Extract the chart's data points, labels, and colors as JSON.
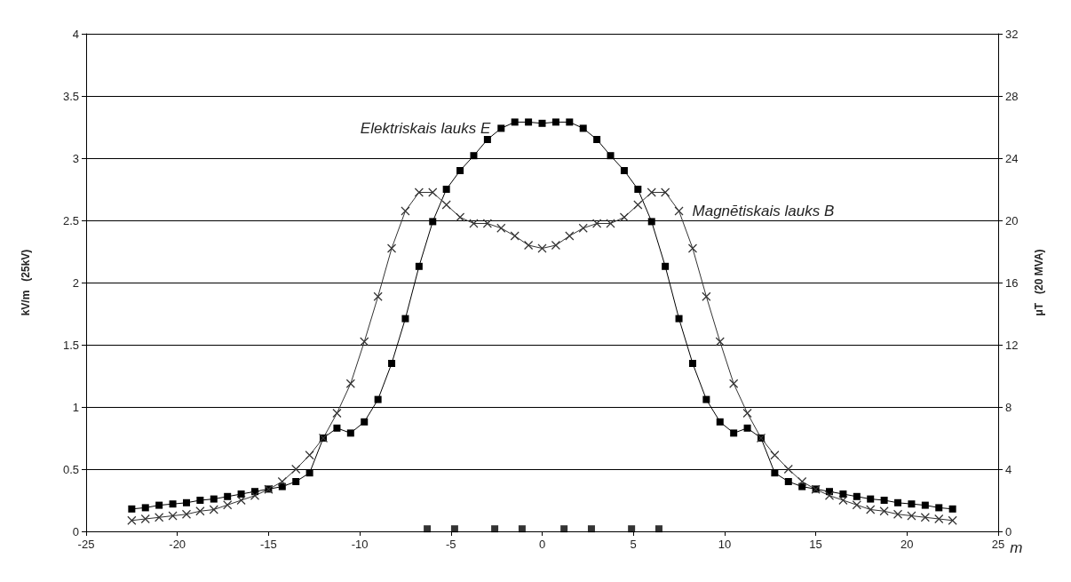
{
  "chart_data": {
    "type": "line",
    "xlabel": "m",
    "ylabel": "kV/m   (25kV)",
    "y2label": "μT   (20 MVA)",
    "xlim": [
      -25,
      25
    ],
    "xticks": [
      -25,
      -20,
      -15,
      -10,
      -5,
      0,
      5,
      10,
      15,
      20,
      25
    ],
    "ylim": [
      0,
      4
    ],
    "yticks": [
      0,
      0.5,
      1,
      1.5,
      2,
      2.5,
      3,
      3.5,
      4
    ],
    "y2lim": [
      0,
      32
    ],
    "y2ticks": [
      0,
      4,
      8,
      12,
      16,
      20,
      24,
      28,
      32
    ],
    "grid": "y",
    "legend": false,
    "line_style": "solid",
    "x": [
      -22.5,
      -21.75,
      -21,
      -20.25,
      -19.5,
      -18.75,
      -18,
      -17.25,
      -16.5,
      -15.75,
      -15,
      -14.25,
      -13.5,
      -12.75,
      -12,
      -11.25,
      -10.5,
      -9.75,
      -9,
      -8.25,
      -7.5,
      -6.75,
      -6,
      -5.25,
      -4.5,
      -3.75,
      -3,
      -2.25,
      -1.5,
      -0.75,
      0,
      0.75,
      1.5,
      2.25,
      3,
      3.75,
      4.5,
      5.25,
      6,
      6.75,
      7.5,
      8.25,
      9,
      9.75,
      10.5,
      11.25,
      12,
      12.75,
      13.5,
      14.25,
      15,
      15.75,
      16.5,
      17.25,
      18,
      18.75,
      19.5,
      20.25,
      21,
      21.75,
      22.5
    ],
    "series": [
      {
        "name": "Elektriskais lauks E",
        "color": "#000000",
        "marker": "square",
        "values": [
          0.18,
          0.19,
          0.21,
          0.22,
          0.23,
          0.25,
          0.26,
          0.28,
          0.3,
          0.32,
          0.34,
          0.36,
          0.4,
          0.47,
          0.75,
          0.83,
          0.79,
          0.88,
          1.06,
          1.35,
          1.71,
          2.13,
          2.49,
          2.75,
          2.9,
          3.02,
          3.15,
          3.24,
          3.29,
          3.29,
          3.28,
          3.29,
          3.29,
          3.24,
          3.15,
          3.02,
          2.9,
          2.75,
          2.49,
          2.13,
          1.71,
          1.35,
          1.06,
          0.88,
          0.79,
          0.83,
          0.75,
          0.47,
          0.4,
          0.36,
          0.34,
          0.32,
          0.3,
          0.28,
          0.26,
          0.25,
          0.23,
          0.22,
          0.21,
          0.19,
          0.18
        ]
      },
      {
        "name": "Magnētiskais lauks B",
        "color": "#333333",
        "marker": "cross",
        "axis": "y2",
        "values": [
          0.7,
          0.8,
          0.9,
          1.0,
          1.1,
          1.3,
          1.4,
          1.7,
          2.0,
          2.3,
          2.7,
          3.2,
          4.0,
          4.9,
          6.0,
          7.6,
          9.5,
          12.2,
          15.1,
          18.2,
          20.6,
          21.8,
          21.8,
          21.0,
          20.2,
          19.8,
          19.8,
          19.5,
          19.0,
          18.4,
          18.2,
          18.4,
          19.0,
          19.5,
          19.8,
          19.8,
          20.2,
          21.0,
          21.8,
          21.8,
          20.6,
          18.2,
          15.1,
          12.2,
          9.5,
          7.6,
          6.0,
          4.9,
          4.0,
          3.2,
          2.7,
          2.3,
          2.0,
          1.7,
          1.4,
          1.3,
          1.1,
          1.0,
          0.9,
          0.8,
          0.7
        ]
      },
      {
        "type": "scatter",
        "color": "#000000",
        "marker": "square",
        "x": [
          -6.3,
          -4.8,
          -2.6,
          -1.1,
          1.2,
          2.7,
          4.9,
          6.4
        ],
        "values": [
          0.02,
          0.02,
          0.02,
          0.02,
          0.02,
          0.02,
          0.02,
          0.02
        ]
      }
    ]
  }
}
